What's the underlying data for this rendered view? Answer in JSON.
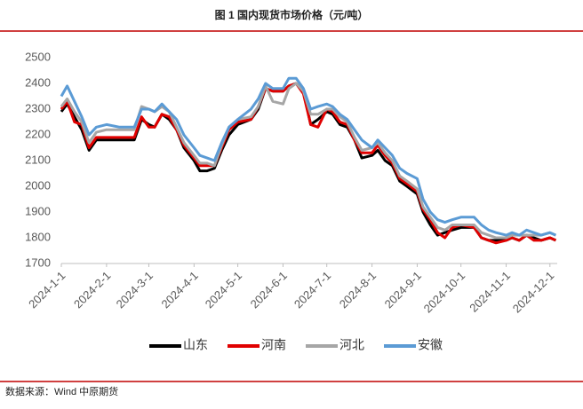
{
  "chart_data": {
    "type": "line",
    "title": "图 1 国内现货市场价格（元/吨）",
    "source": "数据来源：Wind 中原期货",
    "x": [
      "2024-1-1",
      "2024-1-5",
      "2024-1-10",
      "2024-1-15",
      "2024-1-20",
      "2024-1-25",
      "2024-2-1",
      "2024-2-10",
      "2024-2-20",
      "2024-2-25",
      "2024-3-1",
      "2024-3-5",
      "2024-3-10",
      "2024-3-15",
      "2024-3-20",
      "2024-3-25",
      "2024-4-1",
      "2024-4-5",
      "2024-4-10",
      "2024-4-15",
      "2024-4-20",
      "2024-4-25",
      "2024-5-1",
      "2024-5-10",
      "2024-5-15",
      "2024-5-20",
      "2024-5-25",
      "2024-6-1",
      "2024-6-5",
      "2024-6-10",
      "2024-6-15",
      "2024-6-20",
      "2024-6-25",
      "2024-7-1",
      "2024-7-5",
      "2024-7-10",
      "2024-7-15",
      "2024-7-20",
      "2024-7-25",
      "2024-8-1",
      "2024-8-5",
      "2024-8-10",
      "2024-8-15",
      "2024-8-20",
      "2024-8-25",
      "2024-9-1",
      "2024-9-5",
      "2024-9-10",
      "2024-9-15",
      "2024-9-20",
      "2024-9-25",
      "2024-10-1",
      "2024-10-10",
      "2024-10-15",
      "2024-10-20",
      "2024-10-25",
      "2024-11-1",
      "2024-11-5",
      "2024-11-10",
      "2024-11-15",
      "2024-11-20",
      "2024-11-25",
      "2024-12-1",
      "2024-12-5"
    ],
    "series": [
      {
        "name": "山东",
        "color": "#000000",
        "values": [
          2290,
          2320,
          2270,
          2220,
          2140,
          2180,
          2180,
          2180,
          2180,
          2260,
          2240,
          2230,
          2280,
          2260,
          2220,
          2150,
          2100,
          2060,
          2060,
          2070,
          2140,
          2200,
          2240,
          2260,
          2300,
          2380,
          2370,
          2370,
          2390,
          2400,
          2370,
          2240,
          2260,
          2290,
          2280,
          2240,
          2230,
          2180,
          2110,
          2120,
          2140,
          2100,
          2080,
          2020,
          2000,
          1970,
          1900,
          1850,
          1810,
          1820,
          1830,
          1840,
          1840,
          1800,
          1790,
          1790,
          1790,
          1800,
          1790,
          1810,
          1800,
          1790,
          1800,
          1790
        ]
      },
      {
        "name": "河南",
        "color": "#e00000",
        "values": [
          2300,
          2330,
          2250,
          2240,
          2150,
          2190,
          2190,
          2190,
          2190,
          2270,
          2230,
          2230,
          2280,
          2270,
          2220,
          2160,
          2110,
          2080,
          2080,
          2080,
          2150,
          2220,
          2250,
          2260,
          2310,
          2380,
          2370,
          2370,
          2390,
          2400,
          2360,
          2240,
          2230,
          2300,
          2290,
          2250,
          2240,
          2180,
          2130,
          2130,
          2160,
          2120,
          2090,
          2030,
          2010,
          1980,
          1910,
          1870,
          1820,
          1800,
          1840,
          1850,
          1840,
          1800,
          1790,
          1780,
          1790,
          1800,
          1790,
          1810,
          1790,
          1790,
          1800,
          1790
        ]
      },
      {
        "name": "河北",
        "color": "#a6a6a6",
        "values": [
          2310,
          2340,
          2290,
          2250,
          2170,
          2210,
          2220,
          2220,
          2220,
          2310,
          2300,
          2290,
          2310,
          2290,
          2230,
          2170,
          2120,
          2090,
          2090,
          2080,
          2160,
          2230,
          2260,
          2270,
          2310,
          2390,
          2330,
          2320,
          2380,
          2400,
          2370,
          2280,
          2280,
          2300,
          2300,
          2270,
          2250,
          2190,
          2140,
          2150,
          2170,
          2130,
          2100,
          2040,
          2020,
          1990,
          1920,
          1880,
          1840,
          1830,
          1850,
          1850,
          1850,
          1820,
          1810,
          1800,
          1800,
          1810,
          1810,
          1810,
          1810,
          1810,
          1820,
          1810
        ]
      },
      {
        "name": "安徽",
        "color": "#5b9bd5",
        "values": [
          2350,
          2390,
          2330,
          2270,
          2200,
          2230,
          2240,
          2230,
          2230,
          2300,
          2300,
          2290,
          2320,
          2290,
          2260,
          2200,
          2150,
          2120,
          2110,
          2100,
          2170,
          2230,
          2260,
          2300,
          2340,
          2400,
          2380,
          2380,
          2420,
          2420,
          2380,
          2300,
          2310,
          2320,
          2310,
          2280,
          2260,
          2220,
          2180,
          2150,
          2180,
          2150,
          2120,
          2070,
          2050,
          2030,
          1950,
          1900,
          1870,
          1860,
          1870,
          1880,
          1880,
          1850,
          1830,
          1820,
          1810,
          1820,
          1810,
          1830,
          1820,
          1810,
          1820,
          1810
        ]
      }
    ],
    "xlim": [
      "2024-1-1",
      "2024-12-6"
    ],
    "xticks": [
      "2024-1-1",
      "2024-2-1",
      "2024-3-1",
      "2024-4-1",
      "2024-5-1",
      "2024-6-1",
      "2024-7-1",
      "2024-8-1",
      "2024-9-1",
      "2024-10-1",
      "2024-11-1",
      "2024-12-1"
    ],
    "ylim": [
      1700,
      2500
    ],
    "yticks": [
      1700,
      1800,
      1900,
      2000,
      2100,
      2200,
      2300,
      2400,
      2500
    ],
    "grid": false,
    "legend_position": "bottom"
  }
}
